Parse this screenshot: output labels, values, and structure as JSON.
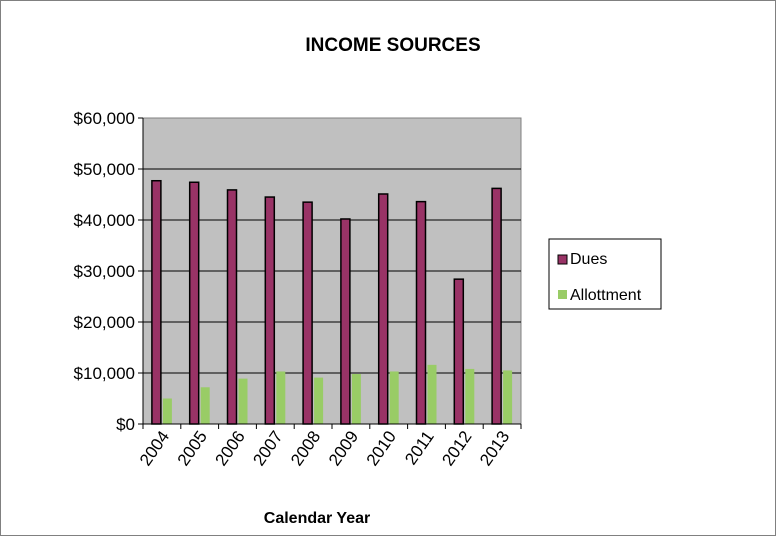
{
  "chart_data": {
    "type": "bar",
    "title": "INCOME SOURCES",
    "xlabel": "Calendar Year",
    "ylabel": "",
    "ylim": [
      0,
      60000
    ],
    "yticks": [
      0,
      10000,
      20000,
      30000,
      40000,
      50000,
      60000
    ],
    "ytick_labels": [
      "$0",
      "$10,000",
      "$20,000",
      "$30,000",
      "$40,000",
      "$50,000",
      "$60,000"
    ],
    "categories": [
      "2004",
      "2005",
      "2006",
      "2007",
      "2008",
      "2009",
      "2010",
      "2011",
      "2012",
      "2013"
    ],
    "series": [
      {
        "name": "Dues",
        "color": "#993366",
        "values": [
          47700,
          47400,
          45900,
          44500,
          43500,
          40200,
          45100,
          43600,
          28400,
          46200
        ]
      },
      {
        "name": "Allottment",
        "color": "#99cc66",
        "values": [
          5000,
          7200,
          8900,
          10300,
          9100,
          9800,
          10300,
          11600,
          10800,
          10500
        ]
      }
    ],
    "grid": true,
    "legend": "right",
    "plot_background": "#c0c0c0"
  }
}
